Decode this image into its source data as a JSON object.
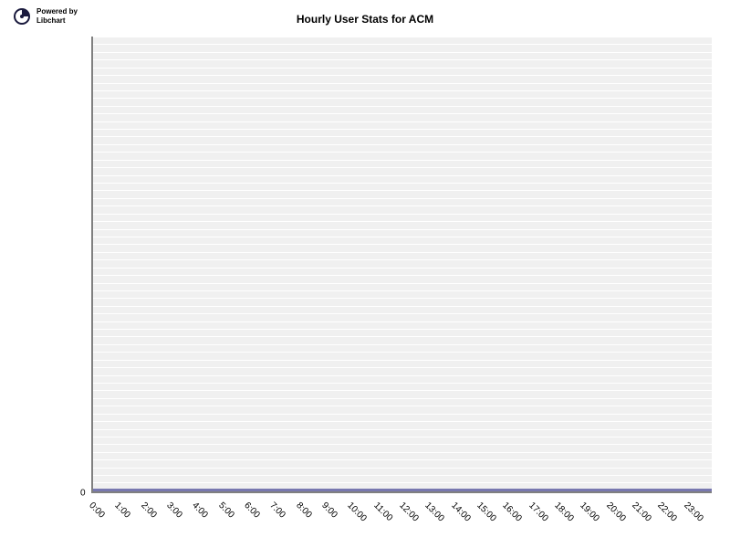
{
  "logo": {
    "powered_by_line1": "Powered by",
    "powered_by_line2": "Libchart",
    "icon_bg": "#ffffff",
    "icon_fg": "#1a1a3d"
  },
  "chart": {
    "type": "bar",
    "title": "Hourly User Stats for ACM",
    "title_fontsize": 12,
    "title_fontweight": "bold",
    "background_color": "#ffffff",
    "plot_background": "#f0f0f0",
    "grid_color": "#ffffff",
    "axis_color": "#808080",
    "baseline_color": "#7878b0",
    "x_labels": [
      "0:00",
      "1:00",
      "2:00",
      "3:00",
      "4:00",
      "5:00",
      "6:00",
      "7:00",
      "8:00",
      "9:00",
      "10:00",
      "11:00",
      "12:00",
      "13:00",
      "14:00",
      "15:00",
      "16:00",
      "17:00",
      "18:00",
      "19:00",
      "20:00",
      "21:00",
      "22:00",
      "23:00"
    ],
    "values": [
      0,
      0,
      0,
      0,
      0,
      0,
      0,
      0,
      0,
      0,
      0,
      0,
      0,
      0,
      0,
      0,
      0,
      0,
      0,
      0,
      0,
      0,
      0,
      0
    ],
    "y_ticks": [
      0
    ],
    "ylim": [
      0,
      1
    ],
    "x_label_fontsize": 10,
    "y_label_fontsize": 10,
    "x_label_rotation": 45,
    "grid_line_count": 60
  }
}
